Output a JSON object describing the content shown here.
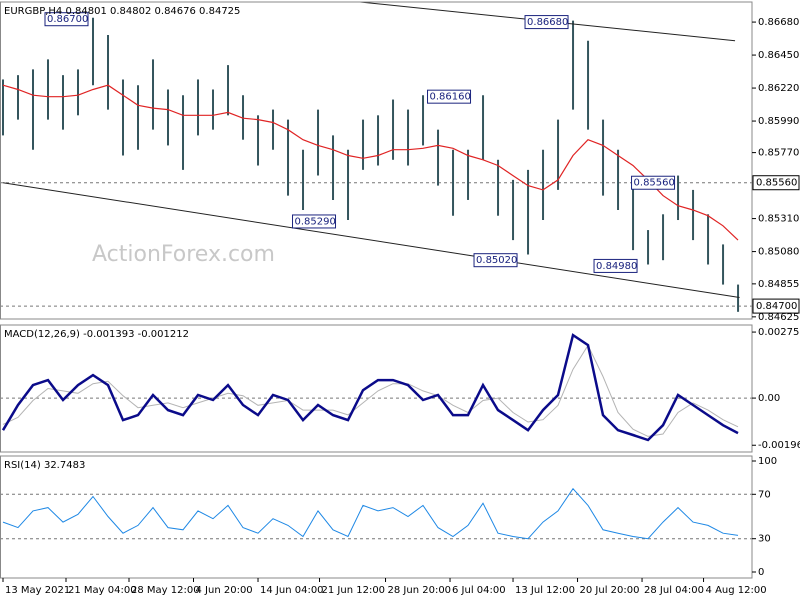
{
  "chart_data": [
    {
      "type": "hilo",
      "title": "EURGBP,H4  0.84801 0.84802 0.84676 0.84725",
      "watermark": "ActionForex.com",
      "x": [
        0,
        1,
        2,
        3,
        4,
        5,
        6,
        7,
        8,
        9,
        10,
        11,
        12,
        13,
        14,
        15,
        16,
        17,
        18,
        19,
        20,
        21,
        22,
        23,
        24,
        25,
        26,
        27,
        28,
        29,
        30,
        31,
        32,
        33,
        34,
        35,
        36,
        37,
        38,
        39,
        40,
        41,
        42,
        43,
        44,
        45,
        46,
        47,
        48,
        49
      ],
      "xlim": [
        -0.2,
        49.93
      ],
      "high": [
        0.8628,
        0.8631,
        0.8635,
        0.8642,
        0.8631,
        0.8635,
        0.8671,
        0.8659,
        0.8628,
        0.8624,
        0.8642,
        0.8621,
        0.8617,
        0.8628,
        0.8621,
        0.8638,
        0.8617,
        0.8603,
        0.8607,
        0.86,
        0.8579,
        0.8607,
        0.8589,
        0.8579,
        0.86,
        0.8603,
        0.8614,
        0.8607,
        0.8617,
        0.8593,
        0.8579,
        0.8579,
        0.8617,
        0.8572,
        0.8558,
        0.8565,
        0.8579,
        0.86,
        0.8669,
        0.8655,
        0.86,
        0.8579,
        0.8558,
        0.8523,
        0.8534,
        0.8561,
        0.8551,
        0.8534,
        0.8513,
        0.8485
      ],
      "low": [
        0.8589,
        0.86,
        0.8579,
        0.86,
        0.8593,
        0.8603,
        0.8624,
        0.8607,
        0.8575,
        0.8579,
        0.8593,
        0.8582,
        0.8565,
        0.8589,
        0.8593,
        0.8603,
        0.8586,
        0.8568,
        0.8579,
        0.8547,
        0.8537,
        0.8561,
        0.8544,
        0.853,
        0.8565,
        0.8568,
        0.8572,
        0.8568,
        0.8582,
        0.8554,
        0.8533,
        0.8544,
        0.8572,
        0.8533,
        0.8516,
        0.8506,
        0.853,
        0.8551,
        0.8607,
        0.8593,
        0.8547,
        0.8537,
        0.8509,
        0.8499,
        0.8502,
        0.853,
        0.8516,
        0.8499,
        0.8485,
        0.8466
      ],
      "color": "#34555d",
      "ma": {
        "color": "#e02424",
        "values": [
          0.8624,
          0.8621,
          0.8617,
          0.8616,
          0.8616,
          0.8617,
          0.8621,
          0.8624,
          0.8617,
          0.861,
          0.8608,
          0.8607,
          0.8603,
          0.8603,
          0.8603,
          0.8605,
          0.8601,
          0.86,
          0.8598,
          0.8593,
          0.8586,
          0.8582,
          0.8579,
          0.8575,
          0.8573,
          0.8575,
          0.8579,
          0.8579,
          0.858,
          0.8582,
          0.858,
          0.8575,
          0.8572,
          0.8568,
          0.8561,
          0.8554,
          0.8551,
          0.8558,
          0.8575,
          0.8586,
          0.8582,
          0.8575,
          0.8568,
          0.8558,
          0.8547,
          0.854,
          0.8537,
          0.8533,
          0.8526,
          0.8516
        ]
      },
      "ylim": [
        0.8461,
        0.8682
      ],
      "yticks": [
        {
          "value": 0.8668,
          "label": "0.86680"
        },
        {
          "value": 0.8645,
          "label": "0.86450"
        },
        {
          "value": 0.8622,
          "label": "0.86220"
        },
        {
          "value": 0.8599,
          "label": "0.85990"
        },
        {
          "value": 0.8577,
          "label": "0.85770"
        },
        {
          "value": 0.8531,
          "label": "0.85310"
        },
        {
          "value": 0.8508,
          "label": "0.85080"
        },
        {
          "value": 0.84855,
          "label": "0.84855"
        },
        {
          "value": 0.84625,
          "label": "0.84625"
        }
      ],
      "levels": [
        {
          "value": 0.8556,
          "label": "0.85560"
        },
        {
          "value": 0.847,
          "label": "0.84700"
        }
      ],
      "annotations": [
        {
          "x": 2.8,
          "value": 0.867,
          "label": "0.86700"
        },
        {
          "x": 34.8,
          "value": 0.8668,
          "label": "0.86680"
        },
        {
          "x": 28.3,
          "value": 0.8616,
          "label": "0.86160"
        },
        {
          "x": 19.3,
          "value": 0.8529,
          "label": "0.85290"
        },
        {
          "x": 31.4,
          "value": 0.8502,
          "label": "0.85020"
        },
        {
          "x": 39.4,
          "value": 0.8498,
          "label": "0.84980"
        },
        {
          "x": 41.9,
          "value": 0.8556,
          "label": "0.85560"
        }
      ],
      "trendlines": [
        {
          "x": [
            23.8,
            48.8
          ],
          "y": [
            0.8682,
            0.8655
          ]
        },
        {
          "x": [
            0,
            49.1
          ],
          "y": [
            0.8556,
            0.8476
          ]
        }
      ],
      "trend_color": "#222222"
    },
    {
      "type": "line",
      "title": "MACD(12,26,9) -0.001393 -0.001212",
      "series": [
        {
          "color": "#0b0b8a",
          "values": [
            -0.00134,
            -0.00029,
            0.00054,
            0.00075,
            -8e-05,
            0.00054,
            0.00096,
            0.00054,
            -0.00092,
            -0.00071,
            0.00013,
            -0.0005,
            -0.00071,
            0.00013,
            -8e-05,
            0.00054,
            -0.00029,
            -0.00071,
            0.00013,
            -8e-05,
            -0.00092,
            -0.00029,
            -0.00071,
            -0.00092,
            0.00033,
            0.00075,
            0.00075,
            0.00054,
            -8e-05,
            0.00013,
            -0.00071,
            -0.00071,
            0.00054,
            -0.0005,
            -0.00092,
            -0.00134,
            -0.0005,
            0.00013,
            0.00263,
            0.00221,
            -0.00071,
            -0.00134,
            -0.00154,
            -0.00175,
            -0.00113,
            0.00013,
            -0.00029,
            -0.00071,
            -0.00113,
            -0.00146
          ]
        },
        {
          "color": "#b4b4b4",
          "values": [
            -0.0011,
            -0.0008,
            -0.0001,
            0.0004,
            0.0003,
            0.0002,
            0.0006,
            0.0007,
            0.0001,
            -0.0004,
            -0.0003,
            -0.0002,
            -0.0004,
            -0.0002,
            0,
            0.0002,
            0.0001,
            -0.0003,
            -0.0002,
            -0.0001,
            -0.0005,
            -0.0005,
            -0.0005,
            -0.0007,
            -0.0002,
            0.0003,
            0.0006,
            0.0006,
            0.0003,
            0.0001,
            -0.0003,
            -0.0006,
            -0.0001,
            0,
            -0.0006,
            -0.001,
            -0.0009,
            -0.0003,
            0.0012,
            0.0022,
            0.0009,
            -0.0006,
            -0.0013,
            -0.0016,
            -0.0015,
            -0.0006,
            -0.0002,
            -0.0005,
            -0.0009,
            -0.0012
          ]
        }
      ],
      "ylim": [
        -0.00225,
        0.00305
      ],
      "yticks": [
        0.002755,
        {
          "value": 0,
          "label": "0.00"
        },
        -0.001968
      ],
      "levels": [
        0
      ]
    },
    {
      "type": "line",
      "title": "RSI(14) 32.7483",
      "series": [
        {
          "color": "#1e88e5",
          "values": [
            45,
            40,
            55,
            58,
            45,
            52,
            68,
            50,
            35,
            42,
            58,
            40,
            38,
            55,
            48,
            60,
            40,
            35,
            48,
            42,
            32,
            55,
            38,
            32,
            60,
            55,
            58,
            50,
            60,
            40,
            32,
            42,
            62,
            35,
            32,
            30,
            45,
            55,
            75,
            60,
            38,
            35,
            32,
            30,
            45,
            58,
            45,
            42,
            35,
            33
          ]
        }
      ],
      "ylim": [
        -5.4,
        104.5
      ],
      "yticks": [
        100,
        70,
        30,
        0
      ],
      "levels": [
        70,
        30
      ],
      "xticks": [
        {
          "value": 0,
          "label": "13 May 2021"
        },
        {
          "value": 4.2,
          "label": "21 May 04:00"
        },
        {
          "value": 8.4,
          "label": "28 May 12:00"
        },
        {
          "value": 12.7,
          "label": "4 Jun 20:00"
        },
        {
          "value": 17,
          "label": "14 Jun 04:00"
        },
        {
          "value": 21.1,
          "label": "21 Jun 12:00"
        },
        {
          "value": 25.5,
          "label": "28 Jun 20:00"
        },
        {
          "value": 29.8,
          "label": "6 Jul 04:00"
        },
        {
          "value": 34,
          "label": "13 Jul 12:00"
        },
        {
          "value": 38.3,
          "label": "20 Jul 20:00"
        },
        {
          "value": 42.6,
          "label": "28 Jul 04:00"
        },
        {
          "value": 46.7,
          "label": "4 Aug 12:00"
        }
      ]
    }
  ]
}
